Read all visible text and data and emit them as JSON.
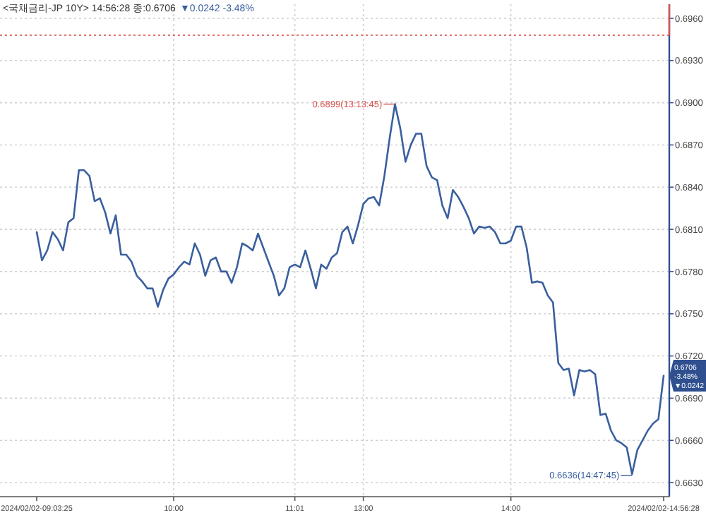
{
  "chart_data": {
    "type": "line",
    "title": "<국채금리-JP 10Y> 14:56:28 종:0.6706",
    "subtitle": "▼0.0242 -3.48%",
    "categories": [
      "2024/02/02-09:03:25",
      null,
      null,
      null,
      null,
      null,
      null,
      null,
      null,
      null,
      null,
      null,
      null,
      null,
      null,
      null,
      null,
      null,
      null,
      null,
      null,
      null,
      null,
      null,
      null,
      null,
      "10:00",
      null,
      null,
      null,
      null,
      null,
      null,
      null,
      null,
      null,
      null,
      null,
      null,
      null,
      null,
      null,
      null,
      null,
      null,
      null,
      null,
      null,
      null,
      "11:01",
      null,
      null,
      null,
      null,
      null,
      null,
      null,
      null,
      null,
      null,
      null,
      null,
      "13:00",
      null,
      null,
      null,
      null,
      null,
      null,
      null,
      null,
      null,
      null,
      null,
      null,
      null,
      null,
      null,
      null,
      null,
      null,
      null,
      null,
      null,
      null,
      null,
      null,
      null,
      null,
      null,
      "14:00",
      null,
      null,
      null,
      null,
      null,
      null,
      null,
      null,
      null,
      null,
      null,
      null,
      null,
      null,
      null,
      null,
      null,
      null,
      null,
      null,
      null,
      null,
      null,
      null,
      null,
      null,
      null,
      null,
      "2024/02/02-14:56:28"
    ],
    "series": [
      {
        "color": "#3a5f9e",
        "values": [
          0.6808,
          0.6788,
          0.6795,
          0.6808,
          0.6803,
          0.6795,
          0.6815,
          0.6818,
          0.6852,
          0.6852,
          0.6848,
          0.683,
          0.6832,
          0.6822,
          0.6807,
          0.682,
          0.6792,
          0.6792,
          0.6787,
          0.6777,
          0.6773,
          0.6768,
          0.6768,
          0.6755,
          0.6767,
          0.6775,
          0.6778,
          0.6783,
          0.6787,
          0.6785,
          0.68,
          0.6792,
          0.6777,
          0.6788,
          0.679,
          0.678,
          0.678,
          0.6772,
          0.6783,
          0.68,
          0.6798,
          0.6795,
          0.6807,
          0.6797,
          0.6787,
          0.6777,
          0.6763,
          0.6768,
          0.6783,
          0.6785,
          0.6783,
          0.6795,
          0.6782,
          0.6768,
          0.6785,
          0.6782,
          0.679,
          0.6793,
          0.6808,
          0.6812,
          0.68,
          0.6813,
          0.6828,
          0.6832,
          0.6833,
          0.6827,
          0.6848,
          0.6875,
          0.6899,
          0.6882,
          0.6858,
          0.687,
          0.6878,
          0.6878,
          0.6855,
          0.6847,
          0.6845,
          0.6827,
          0.6818,
          0.6838,
          0.6833,
          0.6826,
          0.6818,
          0.6807,
          0.6812,
          0.6811,
          0.6812,
          0.6808,
          0.68,
          0.68,
          0.6802,
          0.6812,
          0.6812,
          0.6797,
          0.6772,
          0.6773,
          0.6772,
          0.6763,
          0.6758,
          0.6715,
          0.671,
          0.6711,
          0.6692,
          0.671,
          0.6709,
          0.671,
          0.6707,
          0.6678,
          0.6679,
          0.6667,
          0.666,
          0.6658,
          0.6655,
          0.6636,
          0.6653,
          0.666,
          0.6667,
          0.6672,
          0.6675,
          0.6706
        ]
      }
    ],
    "ylim": [
      0.662,
      0.697
    ],
    "yticks": [
      {
        "value": 0.663,
        "label": "0.6630"
      },
      {
        "value": 0.666,
        "label": "0.6660"
      },
      {
        "value": 0.669,
        "label": "0.6690"
      },
      {
        "value": 0.672,
        "label": "0.6720"
      },
      {
        "value": 0.675,
        "label": "0.6750"
      },
      {
        "value": 0.678,
        "label": "0.6780"
      },
      {
        "value": 0.681,
        "label": "0.6810"
      },
      {
        "value": 0.684,
        "label": "0.6840"
      },
      {
        "value": 0.687,
        "label": "0.6870"
      },
      {
        "value": 0.69,
        "label": "0.6900"
      },
      {
        "value": 0.693,
        "label": "0.6930"
      },
      {
        "value": 0.696,
        "label": "0.6960"
      }
    ],
    "ref_lines": [
      {
        "axis": "y",
        "value": 0.6948,
        "color": "#d9534f",
        "line_style": "dotted"
      }
    ],
    "annotations": [
      "0.6899(13:13:45)",
      "0.6636(14:47:45)",
      {
        "text": "0.6706\n-3.48%\n▼0.0242",
        "x": "2024/02/02-14:56:28",
        "y": 0.6706
      }
    ],
    "grid": true,
    "line_style": "solid",
    "marker": "none"
  }
}
